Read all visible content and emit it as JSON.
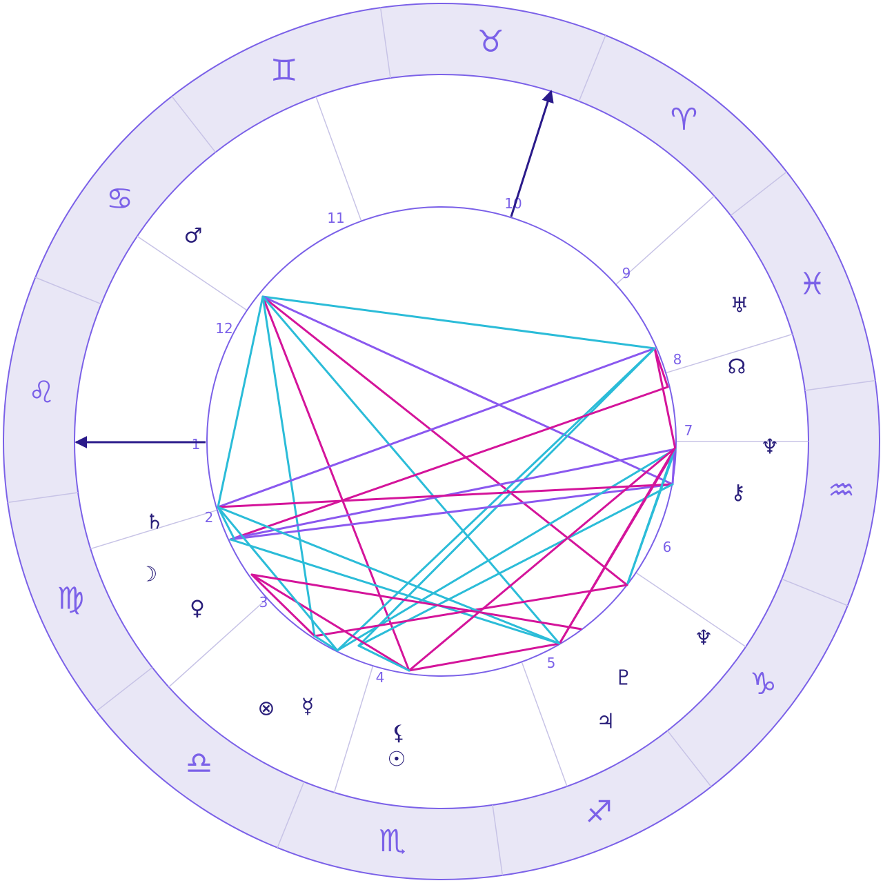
{
  "colors": {
    "ring_fill": "#e9e7f6",
    "ring_stroke": "#7b61e8",
    "divider": "#c7c3e6",
    "house_number": "#7b61e8",
    "planet": "#2a1f7a",
    "angle_arrow": "#2a1a8a",
    "aspect_cyan": "#2bbcd8",
    "aspect_magenta": "#d4149a",
    "aspect_purple": "#8a58ef"
  },
  "zodiac_signs": [
    {
      "name": "aries",
      "glyph": "♈"
    },
    {
      "name": "taurus",
      "glyph": "♉"
    },
    {
      "name": "gemini",
      "glyph": "♊"
    },
    {
      "name": "cancer",
      "glyph": "♋"
    },
    {
      "name": "leo",
      "glyph": "♌"
    },
    {
      "name": "virgo",
      "glyph": "♍"
    },
    {
      "name": "libra",
      "glyph": "♎"
    },
    {
      "name": "scorpio",
      "glyph": "♏"
    },
    {
      "name": "sagittarius",
      "glyph": "♐"
    },
    {
      "name": "capricorn",
      "glyph": "♑"
    },
    {
      "name": "aquarius",
      "glyph": "♒"
    },
    {
      "name": "pisces",
      "glyph": "♓"
    }
  ],
  "houses": [
    {
      "number": "1"
    },
    {
      "number": "2"
    },
    {
      "number": "3"
    },
    {
      "number": "4"
    },
    {
      "number": "5"
    },
    {
      "number": "6"
    },
    {
      "number": "7"
    },
    {
      "number": "8"
    },
    {
      "number": "9"
    },
    {
      "number": "10"
    },
    {
      "number": "11"
    },
    {
      "number": "12"
    }
  ],
  "planets": [
    {
      "name": "mars",
      "glyph": "♂"
    },
    {
      "name": "uranus",
      "glyph": "♅"
    },
    {
      "name": "north-node",
      "glyph": "☊"
    },
    {
      "name": "neptune",
      "glyph": "♆"
    },
    {
      "name": "chiron",
      "glyph": "⚷"
    },
    {
      "name": "saturn",
      "glyph": "♄"
    },
    {
      "name": "moon",
      "glyph": "☽"
    },
    {
      "name": "venus",
      "glyph": "♀"
    },
    {
      "name": "vertex",
      "glyph": "♆"
    },
    {
      "name": "pluto",
      "glyph": "♇"
    },
    {
      "name": "jupiter",
      "glyph": "♃"
    },
    {
      "name": "fortune",
      "glyph": "⊗"
    },
    {
      "name": "mercury",
      "glyph": "☿"
    },
    {
      "name": "lilith",
      "glyph": "⚸"
    },
    {
      "name": "sun",
      "glyph": "☉"
    }
  ],
  "aspects": [
    {
      "from": 0,
      "to": 1,
      "kind": "cyan"
    },
    {
      "from": 0,
      "to": 2,
      "kind": "magenta"
    },
    {
      "from": 0,
      "to": 3,
      "kind": "purple"
    },
    {
      "from": 0,
      "to": 4,
      "kind": "cyan"
    },
    {
      "from": 0,
      "to": 5,
      "kind": "magenta"
    },
    {
      "from": 0,
      "to": 6,
      "kind": "cyan"
    },
    {
      "from": 0,
      "to": 7,
      "kind": "cyan"
    },
    {
      "from": 1,
      "to": 8,
      "kind": "magenta"
    },
    {
      "from": 1,
      "to": 9,
      "kind": "magenta"
    },
    {
      "from": 1,
      "to": 10,
      "kind": "purple"
    },
    {
      "from": 1,
      "to": 11,
      "kind": "cyan"
    },
    {
      "from": 1,
      "to": 12,
      "kind": "cyan"
    },
    {
      "from": 13,
      "to": 8,
      "kind": "magenta"
    },
    {
      "from": 13,
      "to": 3,
      "kind": "purple"
    },
    {
      "from": 13,
      "to": 7,
      "kind": "cyan"
    },
    {
      "from": 9,
      "to": 14,
      "kind": "purple"
    },
    {
      "from": 9,
      "to": 7,
      "kind": "magenta"
    },
    {
      "from": 9,
      "to": 2,
      "kind": "cyan"
    },
    {
      "from": 9,
      "to": 11,
      "kind": "cyan"
    },
    {
      "from": 3,
      "to": 4,
      "kind": "magenta"
    },
    {
      "from": 3,
      "to": 15,
      "kind": "purple"
    },
    {
      "from": 3,
      "to": 12,
      "kind": "cyan"
    },
    {
      "from": 15,
      "to": 2,
      "kind": "cyan"
    },
    {
      "from": 15,
      "to": 7,
      "kind": "magenta"
    },
    {
      "from": 15,
      "to": 5,
      "kind": "magenta"
    },
    {
      "from": 16,
      "to": 5,
      "kind": "magenta"
    },
    {
      "from": 16,
      "to": 6,
      "kind": "magenta"
    },
    {
      "from": 6,
      "to": 2,
      "kind": "magenta"
    },
    {
      "from": 6,
      "to": 11,
      "kind": "cyan"
    },
    {
      "from": 7,
      "to": 5,
      "kind": "magenta"
    },
    {
      "from": 7,
      "to": 10,
      "kind": "cyan"
    },
    {
      "from": 4,
      "to": 11,
      "kind": "cyan"
    },
    {
      "from": 12,
      "to": 5,
      "kind": "cyan"
    },
    {
      "from": 14,
      "to": 10,
      "kind": "cyan"
    }
  ]
}
